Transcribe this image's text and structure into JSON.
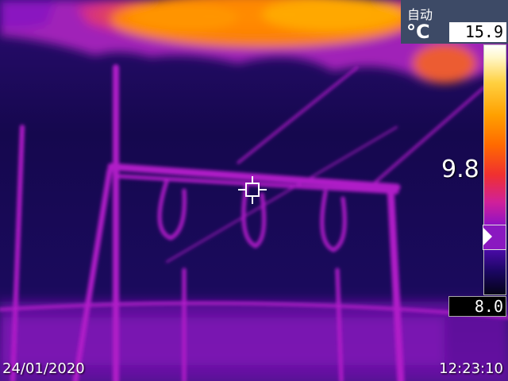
{
  "hud": {
    "mode": "自动",
    "unit": "°C",
    "max_temp": "15.9",
    "min_temp": "8.0",
    "center_temp": "9.8",
    "date": "24/01/2020",
    "time": "12:23:10"
  },
  "palette": {
    "background": "#140a52",
    "sky_hot": "#ff9a00",
    "structure": "#b01ac8",
    "panel": "#3d4a66"
  },
  "icons": {
    "crosshair": "crosshair-icon",
    "marker": "triangle-right-icon"
  }
}
